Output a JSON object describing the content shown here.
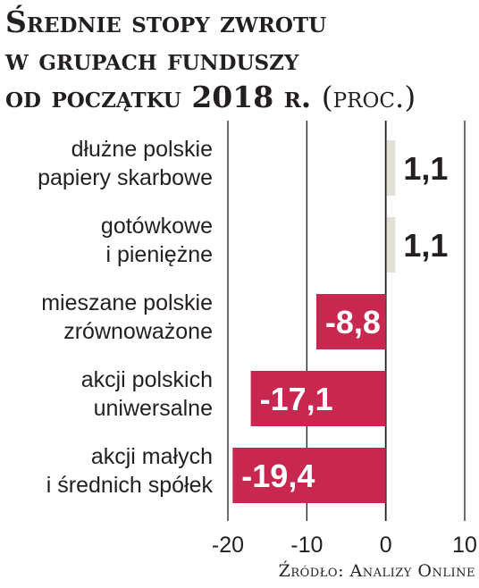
{
  "title": {
    "line1": "Średnie stopy zwrotu",
    "line2": "w grupach funduszy",
    "line3_text": "od początku",
    "line3_year": "2018",
    "line3_suffix": "r.",
    "unit": "(proc.)"
  },
  "source": "Źródło: Analizy Online",
  "colors": {
    "negative": "#c8274f",
    "positive": "#e3e1d6",
    "text": "#231f20",
    "value_on_negative": "#ffffff"
  },
  "chart_data": {
    "type": "bar",
    "orientation": "horizontal",
    "categories": [
      [
        "dłużne polskie",
        "papiery skarbowe"
      ],
      [
        "gotówkowe",
        "i pieniężne"
      ],
      [
        "mieszane polskie",
        "zrównoważone"
      ],
      [
        "akcji polskich",
        "uniwersalne"
      ],
      [
        "akcji małych",
        "i średnich spółek"
      ]
    ],
    "values": [
      1.1,
      1.1,
      -8.8,
      -17.1,
      -19.4
    ],
    "value_labels": [
      "1,1",
      "1,1",
      "-8,8",
      "-17,1",
      "-19,4"
    ],
    "xlim": [
      -20,
      10
    ],
    "xticks": [
      -20,
      -10,
      0,
      10
    ],
    "xtick_labels": [
      "-20",
      "-10",
      "0",
      "10"
    ],
    "grid": true,
    "legend": "none"
  }
}
